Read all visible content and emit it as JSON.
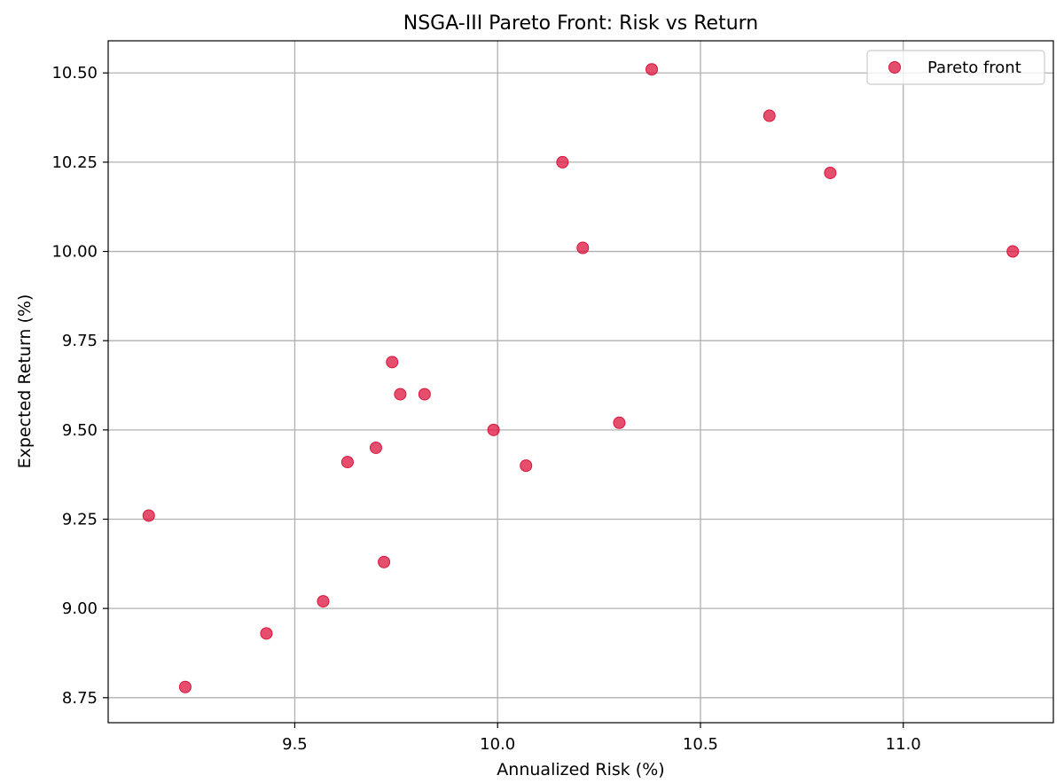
{
  "chart_data": {
    "type": "scatter",
    "title": "NSGA-III Pareto Front: Risk vs Return",
    "xlabel": "Annualized Risk (%)",
    "ylabel": "Expected Return (%)",
    "xlim": [
      9.04,
      11.37
    ],
    "ylim": [
      8.68,
      10.59
    ],
    "xticks": [
      9.5,
      10.0,
      10.5,
      11.0
    ],
    "xtick_labels": [
      "9.5",
      "10.0",
      "10.5",
      "11.0"
    ],
    "yticks": [
      8.75,
      9.0,
      9.25,
      9.5,
      9.75,
      10.0,
      10.25,
      10.5
    ],
    "ytick_labels": [
      "8.75",
      "9.00",
      "9.25",
      "9.50",
      "9.75",
      "10.00",
      "10.25",
      "10.50"
    ],
    "grid": true,
    "legend_position": "top-right",
    "series": [
      {
        "name": "Pareto front",
        "color": "#dc143c",
        "marker": "circle",
        "points": [
          {
            "x": 9.14,
            "y": 9.26
          },
          {
            "x": 9.23,
            "y": 8.78
          },
          {
            "x": 9.43,
            "y": 8.93
          },
          {
            "x": 9.57,
            "y": 9.02
          },
          {
            "x": 9.63,
            "y": 9.41
          },
          {
            "x": 9.7,
            "y": 9.45
          },
          {
            "x": 9.72,
            "y": 9.13
          },
          {
            "x": 9.74,
            "y": 9.69
          },
          {
            "x": 9.76,
            "y": 9.6
          },
          {
            "x": 9.82,
            "y": 9.6
          },
          {
            "x": 9.99,
            "y": 9.5
          },
          {
            "x": 10.07,
            "y": 9.4
          },
          {
            "x": 10.16,
            "y": 10.25
          },
          {
            "x": 10.21,
            "y": 10.01
          },
          {
            "x": 10.3,
            "y": 9.52
          },
          {
            "x": 10.38,
            "y": 10.51
          },
          {
            "x": 10.67,
            "y": 10.38
          },
          {
            "x": 10.82,
            "y": 10.22
          },
          {
            "x": 11.27,
            "y": 10.0
          }
        ]
      }
    ]
  }
}
